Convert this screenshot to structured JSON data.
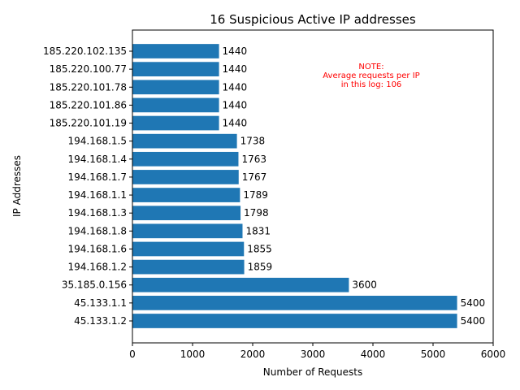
{
  "chart_data": {
    "type": "bar",
    "orientation": "horizontal",
    "title": "16 Suspicious Active IP addresses",
    "xlabel": "Number of Requests",
    "ylabel": "IP Addresses",
    "xlim": [
      0,
      6000
    ],
    "xticks": [
      0,
      1000,
      2000,
      3000,
      4000,
      5000,
      6000
    ],
    "categories": [
      "185.220.102.135",
      "185.220.100.77",
      "185.220.101.78",
      "185.220.101.86",
      "185.220.101.19",
      "194.168.1.5",
      "194.168.1.4",
      "194.168.1.7",
      "194.168.1.1",
      "194.168.1.3",
      "194.168.1.8",
      "194.168.1.6",
      "194.168.1.2",
      "35.185.0.156",
      "45.133.1.1",
      "45.133.1.2"
    ],
    "values": [
      1440,
      1440,
      1440,
      1440,
      1440,
      1738,
      1763,
      1767,
      1789,
      1798,
      1831,
      1855,
      1859,
      3600,
      5400,
      5400
    ],
    "bar_color": "#1f77b4",
    "grid": false,
    "annotation": {
      "lines": [
        "NOTE:",
        "Average requests per IP",
        "in this log: 106"
      ],
      "color": "#ff0000"
    }
  }
}
